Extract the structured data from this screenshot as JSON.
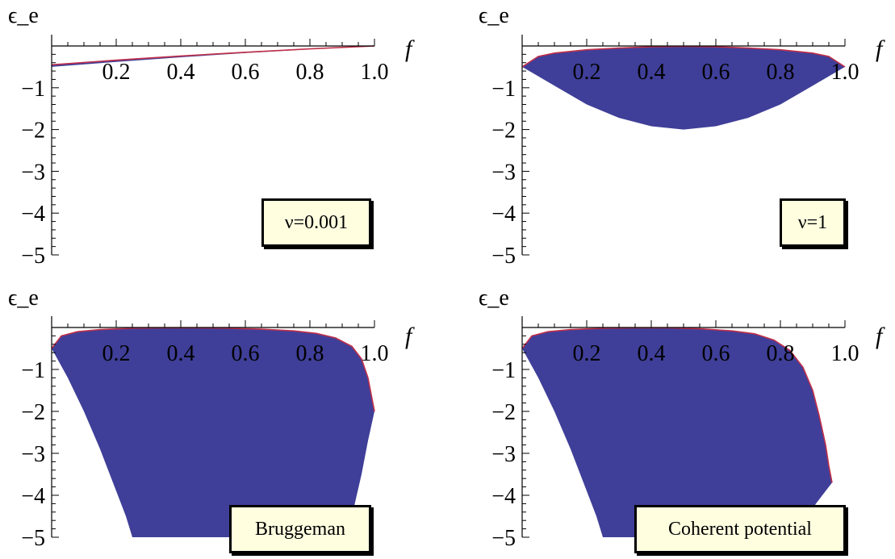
{
  "chart_data": [
    {
      "type": "area",
      "legend_text": "ν=0.001",
      "ylabel": "ϵ_e",
      "xlabel": "f",
      "xlim": [
        0,
        1.0
      ],
      "ylim": [
        -5,
        0
      ],
      "x_ticks": [
        "0.2",
        "0.4",
        "0.6",
        "0.8",
        "1.0"
      ],
      "y_ticks": [
        "−1",
        "−2",
        "−3",
        "−4",
        "−5"
      ],
      "fill_color": "#3f3f99",
      "edge_color": "#c0304a",
      "upper_boundary": {
        "x": [
          0,
          0.2,
          0.4,
          0.6,
          0.8,
          1.0
        ],
        "y": [
          -0.45,
          -0.34,
          -0.24,
          -0.15,
          -0.07,
          0
        ]
      },
      "lower_boundary": {
        "x": [
          0,
          0.2,
          0.4,
          0.6,
          0.8,
          1.0
        ],
        "y": [
          -0.5,
          -0.38,
          -0.27,
          -0.17,
          -0.08,
          0
        ]
      }
    },
    {
      "type": "area",
      "legend_text": "ν=1",
      "ylabel": "ϵ_e",
      "xlabel": "f",
      "xlim": [
        0,
        1.0
      ],
      "ylim": [
        -5,
        0
      ],
      "x_ticks": [
        "0.2",
        "0.4",
        "0.6",
        "0.8",
        "1.0"
      ],
      "y_ticks": [
        "−1",
        "−2",
        "−3",
        "−4",
        "−5"
      ],
      "fill_color": "#3f3f99",
      "edge_color": "#c0304a",
      "upper_boundary": {
        "x": [
          0,
          0.05,
          0.1,
          0.2,
          0.3,
          0.4,
          0.5,
          0.6,
          0.7,
          0.8,
          0.9,
          0.95,
          1.0
        ],
        "y": [
          -0.5,
          -0.25,
          -0.17,
          -0.09,
          -0.05,
          -0.02,
          -0.01,
          -0.02,
          -0.05,
          -0.09,
          -0.17,
          -0.25,
          -0.5
        ]
      },
      "lower_boundary": {
        "x": [
          0,
          0.1,
          0.2,
          0.3,
          0.4,
          0.5,
          0.6,
          0.7,
          0.8,
          0.9,
          1.0
        ],
        "y": [
          -0.5,
          -0.95,
          -1.4,
          -1.72,
          -1.92,
          -2.0,
          -1.92,
          -1.72,
          -1.4,
          -0.95,
          -0.5
        ]
      }
    },
    {
      "type": "area",
      "legend_text": "Bruggeman",
      "ylabel": "ϵ_e",
      "xlabel": "f",
      "xlim": [
        0,
        1.0
      ],
      "ylim": [
        -5,
        0
      ],
      "x_ticks": [
        "0.2",
        "0.4",
        "0.6",
        "0.8",
        "1.0"
      ],
      "y_ticks": [
        "−1",
        "−2",
        "−3",
        "−4",
        "−5"
      ],
      "fill_color": "#3f3f99",
      "edge_color": "#c0304a",
      "upper_boundary": {
        "x": [
          0,
          0.03,
          0.08,
          0.15,
          0.25,
          0.35,
          0.45,
          0.55,
          0.65,
          0.75,
          0.82,
          0.88,
          0.93,
          0.96,
          0.98,
          1.0
        ],
        "y": [
          -0.5,
          -0.2,
          -0.1,
          -0.05,
          -0.02,
          -0.01,
          -0.01,
          -0.02,
          -0.04,
          -0.08,
          -0.14,
          -0.25,
          -0.45,
          -0.75,
          -1.2,
          -2.0
        ]
      },
      "lower_boundary": {
        "x": [
          0,
          0.05,
          0.1,
          0.15,
          0.2,
          0.23,
          0.25,
          0.9,
          0.93,
          0.96,
          0.98,
          1.0
        ],
        "y": [
          -0.5,
          -1.2,
          -2.0,
          -2.9,
          -3.9,
          -4.5,
          -5.0,
          -5.0,
          -4.5,
          -3.5,
          -2.7,
          -2.0
        ]
      }
    },
    {
      "type": "area",
      "legend_text": "Coherent potential",
      "ylabel": "ϵ_e",
      "xlabel": "f",
      "xlim": [
        0,
        1.0
      ],
      "ylim": [
        -5,
        0
      ],
      "x_ticks": [
        "0.2",
        "0.4",
        "0.6",
        "0.8",
        "1.0"
      ],
      "y_ticks": [
        "−1",
        "−2",
        "−3",
        "−4",
        "−5"
      ],
      "fill_color": "#3f3f99",
      "edge_color": "#c0304a",
      "upper_boundary": {
        "x": [
          0,
          0.03,
          0.08,
          0.15,
          0.25,
          0.35,
          0.45,
          0.55,
          0.65,
          0.72,
          0.78,
          0.83,
          0.87,
          0.9,
          0.92,
          0.94,
          0.95,
          0.96
        ],
        "y": [
          -0.5,
          -0.2,
          -0.1,
          -0.05,
          -0.02,
          -0.01,
          -0.01,
          -0.03,
          -0.08,
          -0.15,
          -0.3,
          -0.55,
          -0.95,
          -1.5,
          -2.1,
          -2.8,
          -3.3,
          -3.7
        ]
      },
      "lower_boundary": {
        "x": [
          0,
          0.05,
          0.1,
          0.15,
          0.2,
          0.23,
          0.25,
          0.85,
          0.88,
          0.91,
          0.94,
          0.96
        ],
        "y": [
          -0.5,
          -1.2,
          -2.0,
          -2.9,
          -3.9,
          -4.5,
          -5.0,
          -5.0,
          -4.6,
          -4.2,
          -3.9,
          -3.7
        ]
      }
    }
  ]
}
